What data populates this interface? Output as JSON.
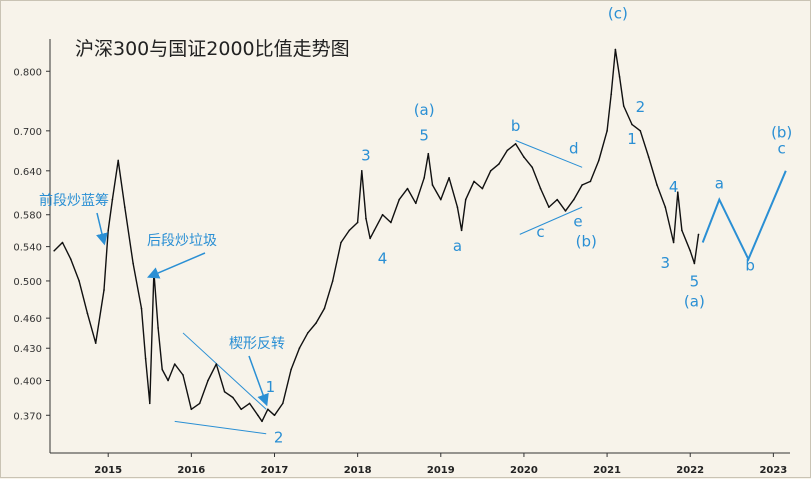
{
  "chart_data": {
    "type": "line",
    "title": "沪深300与国证2000比值走势图",
    "xlabel": "",
    "ylabel": "",
    "log_scale_y": true,
    "grid": false,
    "ylim": [
      0.34,
      0.86
    ],
    "xlim": [
      2014.3,
      2023.2
    ],
    "y_ticks": [
      "0.800",
      "0.700",
      "0.640",
      "0.580",
      "0.540",
      "0.500",
      "0.460",
      "0.430",
      "0.400",
      "0.370"
    ],
    "x_ticks": [
      "2015",
      "2016",
      "2017",
      "2018",
      "2019",
      "2020",
      "2021",
      "2022",
      "2023"
    ],
    "series": [
      {
        "color": "#111111",
        "x": [
          2014.35,
          2014.45,
          2014.55,
          2014.65,
          2014.75,
          2014.85,
          2014.95,
          2015.0,
          2015.05,
          2015.12,
          2015.2,
          2015.3,
          2015.4,
          2015.45,
          2015.5,
          2015.55,
          2015.6,
          2015.65,
          2015.72,
          2015.8,
          2015.9,
          2016.0,
          2016.1,
          2016.2,
          2016.3,
          2016.4,
          2016.5,
          2016.6,
          2016.7,
          2016.8,
          2016.85,
          2016.92,
          2017.0,
          2017.1,
          2017.2,
          2017.3,
          2017.4,
          2017.5,
          2017.6,
          2017.7,
          2017.8,
          2017.9,
          2018.0,
          2018.05,
          2018.1,
          2018.15,
          2018.2,
          2018.3,
          2018.4,
          2018.5,
          2018.6,
          2018.7,
          2018.8,
          2018.85,
          2018.9,
          2019.0,
          2019.1,
          2019.2,
          2019.25,
          2019.3,
          2019.4,
          2019.5,
          2019.6,
          2019.7,
          2019.8,
          2019.9,
          2020.0,
          2020.1,
          2020.2,
          2020.3,
          2020.4,
          2020.5,
          2020.6,
          2020.7,
          2020.8,
          2020.9,
          2021.0,
          2021.05,
          2021.1,
          2021.15,
          2021.2,
          2021.3,
          2021.4,
          2021.5,
          2021.6,
          2021.7,
          2021.8,
          2021.85,
          2021.9,
          2022.0,
          2022.05,
          2022.1
        ],
        "values": [
          0.535,
          0.545,
          0.525,
          0.5,
          0.465,
          0.435,
          0.49,
          0.56,
          0.6,
          0.655,
          0.59,
          0.52,
          0.47,
          0.42,
          0.38,
          0.51,
          0.45,
          0.41,
          0.4,
          0.415,
          0.405,
          0.375,
          0.38,
          0.4,
          0.415,
          0.39,
          0.385,
          0.375,
          0.38,
          0.37,
          0.365,
          0.375,
          0.37,
          0.38,
          0.41,
          0.43,
          0.445,
          0.455,
          0.47,
          0.5,
          0.545,
          0.56,
          0.57,
          0.64,
          0.575,
          0.55,
          0.56,
          0.58,
          0.57,
          0.6,
          0.615,
          0.595,
          0.63,
          0.665,
          0.62,
          0.6,
          0.63,
          0.59,
          0.56,
          0.6,
          0.625,
          0.615,
          0.64,
          0.65,
          0.67,
          0.68,
          0.66,
          0.645,
          0.615,
          0.59,
          0.6,
          0.585,
          0.6,
          0.62,
          0.625,
          0.655,
          0.7,
          0.76,
          0.84,
          0.79,
          0.74,
          0.71,
          0.7,
          0.66,
          0.62,
          0.59,
          0.545,
          0.61,
          0.56,
          0.535,
          0.52,
          0.555
        ]
      }
    ],
    "projection": {
      "color": "#2a8fd4",
      "x": [
        2022.15,
        2022.35,
        2022.7,
        2023.15
      ],
      "values": [
        0.545,
        0.6,
        0.525,
        0.64
      ]
    },
    "trendlines": [
      {
        "name": "triangle-upper-2020",
        "x": [
          2019.9,
          2020.7
        ],
        "values": [
          0.685,
          0.645
        ]
      },
      {
        "name": "triangle-lower-2020",
        "x": [
          2019.95,
          2020.7
        ],
        "values": [
          0.555,
          0.59
        ]
      },
      {
        "name": "wedge-upper-2016",
        "x": [
          2015.9,
          2016.9
        ],
        "values": [
          0.445,
          0.375
        ]
      },
      {
        "name": "wedge-lower-2016",
        "x": [
          2015.8,
          2016.9
        ],
        "values": [
          0.365,
          0.355
        ]
      }
    ],
    "wave_labels": [
      {
        "text": "5",
        "x": 2018.8,
        "y": 0.685
      },
      {
        "text": "(a)",
        "x": 2018.8,
        "y": 0.725
      },
      {
        "text": "3",
        "x": 2018.1,
        "y": 0.655
      },
      {
        "text": "4",
        "x": 2018.3,
        "y": 0.52
      },
      {
        "text": "a",
        "x": 2019.2,
        "y": 0.535
      },
      {
        "text": "b",
        "x": 2019.9,
        "y": 0.7
      },
      {
        "text": "c",
        "x": 2020.2,
        "y": 0.552
      },
      {
        "text": "d",
        "x": 2020.6,
        "y": 0.665
      },
      {
        "text": "e",
        "x": 2020.65,
        "y": 0.565
      },
      {
        "text": "(b)",
        "x": 2020.75,
        "y": 0.54
      },
      {
        "text": "(c)",
        "x": 2021.13,
        "y": 0.9
      },
      {
        "text": "2",
        "x": 2021.4,
        "y": 0.73
      },
      {
        "text": "1",
        "x": 2021.3,
        "y": 0.68
      },
      {
        "text": "4",
        "x": 2021.8,
        "y": 0.61
      },
      {
        "text": "3",
        "x": 2021.7,
        "y": 0.515
      },
      {
        "text": "5",
        "x": 2022.05,
        "y": 0.494
      },
      {
        "text": "(a)",
        "x": 2022.05,
        "y": 0.472
      },
      {
        "text": "a",
        "x": 2022.35,
        "y": 0.615
      },
      {
        "text": "b",
        "x": 2022.72,
        "y": 0.512
      },
      {
        "text": "c",
        "x": 2023.1,
        "y": 0.665
      },
      {
        "text": "(b)",
        "x": 2023.1,
        "y": 0.69
      },
      {
        "text": "1",
        "x": 2016.95,
        "y": 0.39
      },
      {
        "text": "2",
        "x": 2017.05,
        "y": 0.348
      }
    ],
    "annotations": [
      {
        "text": "前段炒蓝筹",
        "arrow_to_x": 2014.95,
        "arrow_to_y": 0.545
      },
      {
        "text": "后段炒垃圾",
        "arrow_to_x": 2015.5,
        "arrow_to_y": 0.505
      },
      {
        "text": "楔形反转",
        "arrow_to_x": 2016.9,
        "arrow_to_y": 0.38
      }
    ]
  }
}
